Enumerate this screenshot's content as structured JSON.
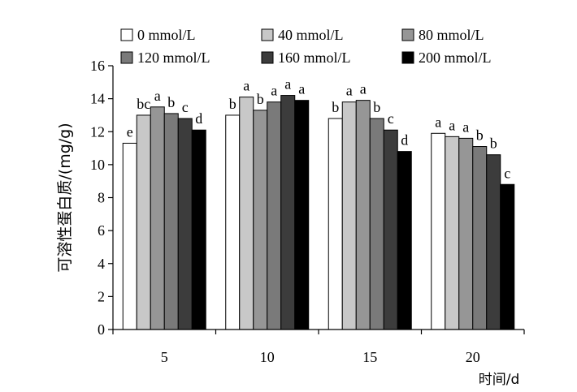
{
  "chart_data": {
    "type": "bar",
    "title": "",
    "xlabel": "时间/d",
    "ylabel": "可溶性蛋白质/(mg/g)",
    "categories": [
      "5",
      "10",
      "15",
      "20"
    ],
    "ylim": [
      0,
      16
    ],
    "yticks": [
      "0",
      "2",
      "4",
      "6",
      "8",
      "10",
      "12",
      "14",
      "16"
    ],
    "grid": false,
    "legend_position": "top",
    "series": [
      {
        "name": "0 mmol/L",
        "color": "#ffffff",
        "values": [
          11.3,
          13.0,
          12.8,
          11.9
        ],
        "letters": [
          "e",
          "b",
          "b",
          "a"
        ]
      },
      {
        "name": "40 mmol/L",
        "color": "#c8c8c8",
        "values": [
          13.0,
          14.1,
          13.8,
          11.7
        ],
        "letters": [
          "bc",
          "a",
          "a",
          "a"
        ]
      },
      {
        "name": "80 mmol/L",
        "color": "#969696",
        "values": [
          13.5,
          13.3,
          13.9,
          11.6
        ],
        "letters": [
          "a",
          "b",
          "a",
          "a"
        ]
      },
      {
        "name": "120 mmol/L",
        "color": "#7a7a7a",
        "values": [
          13.1,
          13.8,
          12.8,
          11.1
        ],
        "letters": [
          "b",
          "a",
          "b",
          "b"
        ]
      },
      {
        "name": "160 mmol/L",
        "color": "#3c3c3c",
        "values": [
          12.8,
          14.2,
          12.1,
          10.6
        ],
        "letters": [
          "c",
          "a",
          "c",
          "b"
        ]
      },
      {
        "name": "200 mmol/L",
        "color": "#000000",
        "values": [
          12.1,
          13.9,
          10.8,
          8.8
        ],
        "letters": [
          "d",
          "a",
          "d",
          "c"
        ]
      }
    ]
  }
}
